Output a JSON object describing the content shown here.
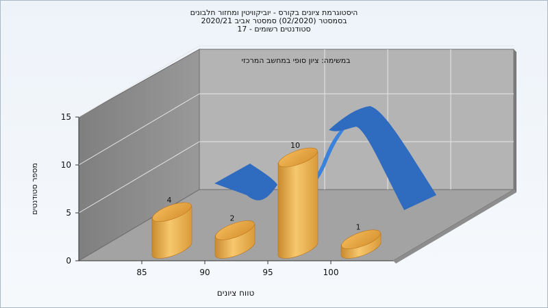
{
  "chart_data": {
    "type": "bar",
    "title_lines": [
      "היסטוגרמת ציונים בקורס - יוביקוויטין ומחזור חלבונים",
      "בסמסטר  (02/2020)  סמסטר אביב 2020/21",
      "סטודנטים רשומים - 17"
    ],
    "inner_title": "במשימה: ציון סופי במחשב המרכזי",
    "xlabel": "טווח ציונים",
    "ylabel": "מספר סטודנטים",
    "categories": [
      "85",
      "90",
      "95",
      "100"
    ],
    "values": [
      4,
      2,
      10,
      1
    ],
    "yticks": [
      "0",
      "5",
      "10",
      "15"
    ],
    "ylim": [
      0,
      15
    ],
    "colors": {
      "bar_light": "#f7c86d",
      "bar_mid": "#e3a23e",
      "bar_dark": "#b9741e",
      "ribbon": "#2f6bbf",
      "ribbon_light": "#3b82dd",
      "wall_left": "#8a8a8a",
      "wall_back": "#b4b4b4",
      "floor": "#a6a6a6"
    }
  }
}
